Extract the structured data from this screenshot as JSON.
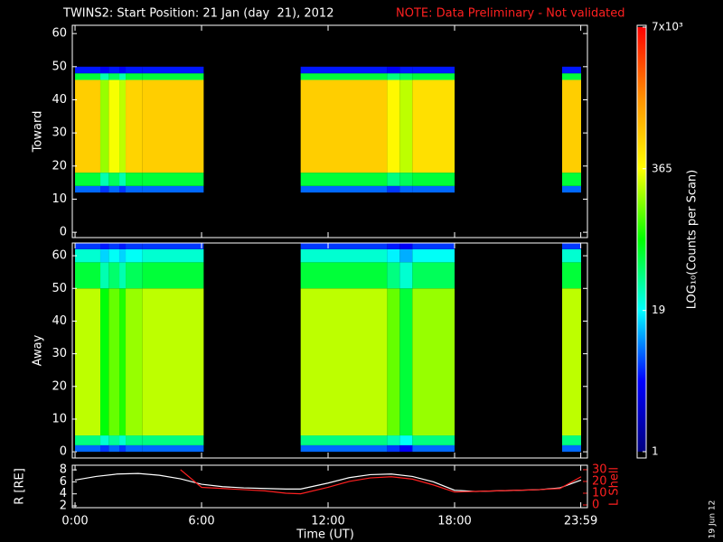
{
  "header": {
    "title": "TWINS2: Start Position: 21 Jan (day  21), 2012",
    "note": "NOTE: Data Preliminary - Not validated",
    "date_stamp": "19 Jun 12"
  },
  "colorbar": {
    "label": "LOG₁₀(Counts per Scan)",
    "scale": "log",
    "zlim": [
      1,
      7000
    ],
    "zticks": [
      1,
      19,
      365,
      {
        "value": 7000,
        "label": "7x10³"
      }
    ],
    "colormap": [
      "#000080",
      "#0000ff",
      "#00ffff",
      "#00ff00",
      "#ffff00",
      "#ff9000",
      "#ff0000"
    ]
  },
  "chart_data": [
    {
      "type": "heatmap",
      "ylabel": "Toward",
      "xlim": [
        -0.13,
        24.3
      ],
      "ylim": [
        -1.6,
        62.5
      ],
      "yticks": [
        0,
        10,
        20,
        30,
        40,
        50,
        60
      ],
      "x_bins": [
        0,
        1.2,
        1.6,
        2.1,
        2.4,
        3.2,
        6.1,
        10.7,
        14.8,
        15.4,
        16,
        18,
        23.1,
        24
      ],
      "y_bins": [
        0,
        12,
        14,
        18,
        46,
        48,
        50,
        64
      ],
      "values": [
        [
          null,
          null,
          null,
          null,
          null,
          null,
          null,
          null,
          null,
          null,
          null,
          null,
          null
        ],
        [
          8,
          6,
          8,
          6,
          8,
          8,
          null,
          8,
          6,
          8,
          8,
          null,
          8
        ],
        [
          60,
          30,
          50,
          30,
          60,
          60,
          null,
          60,
          40,
          50,
          60,
          null,
          60
        ],
        [
          700,
          200,
          350,
          250,
          650,
          700,
          null,
          700,
          400,
          250,
          550,
          null,
          700
        ],
        [
          60,
          30,
          50,
          30,
          60,
          60,
          null,
          60,
          40,
          50,
          60,
          null,
          60
        ],
        [
          5,
          4,
          5,
          4,
          5,
          5,
          null,
          5,
          4,
          5,
          5,
          null,
          5
        ],
        [
          null,
          null,
          null,
          null,
          null,
          null,
          null,
          null,
          null,
          null,
          null,
          null,
          null
        ]
      ]
    },
    {
      "type": "heatmap",
      "ylabel": "Away",
      "xlim": [
        -0.13,
        24.3
      ],
      "ylim": [
        -1.9,
        63.9
      ],
      "yticks": [
        0,
        10,
        20,
        30,
        40,
        50,
        60
      ],
      "x_bins": [
        0,
        1.2,
        1.6,
        2.1,
        2.4,
        3.2,
        6.1,
        10.7,
        14.8,
        15.4,
        16,
        18,
        23.1,
        24
      ],
      "y_bins": [
        0,
        2,
        5,
        50,
        58,
        62,
        64
      ],
      "values": [
        [
          8,
          6,
          8,
          6,
          8,
          8,
          null,
          8,
          6,
          4,
          8,
          null,
          8
        ],
        [
          40,
          25,
          35,
          25,
          40,
          40,
          null,
          40,
          30,
          20,
          40,
          null,
          40
        ],
        [
          250,
          80,
          150,
          100,
          200,
          250,
          null,
          250,
          150,
          60,
          200,
          null,
          250
        ],
        [
          60,
          30,
          45,
          30,
          50,
          60,
          null,
          60,
          40,
          25,
          50,
          null,
          60
        ],
        [
          25,
          15,
          20,
          15,
          20,
          25,
          null,
          25,
          18,
          12,
          20,
          null,
          25
        ],
        [
          6,
          5,
          6,
          5,
          6,
          6,
          null,
          6,
          5,
          4,
          6,
          null,
          6
        ]
      ]
    },
    {
      "type": "line",
      "xlabel": "Time (UT)",
      "ylabel": "R [RE]",
      "y2label": "L Shell",
      "xlim": [
        -0.13,
        24.3
      ],
      "ylim": [
        1.7,
        8.77
      ],
      "yticks": [
        2,
        4,
        6,
        8
      ],
      "y2lim": [
        -2.3,
        33.8
      ],
      "y2ticks": [
        0,
        10,
        20,
        30
      ],
      "xticks": [
        {
          "value": 0,
          "label": "0:00"
        },
        {
          "value": 6,
          "label": "6:00"
        },
        {
          "value": 12,
          "label": "12:00"
        },
        {
          "value": 18,
          "label": "18:00"
        },
        {
          "value": 23.983,
          "label": "23:59"
        }
      ],
      "x": [
        0,
        1,
        2,
        3,
        4,
        5,
        6,
        7,
        8,
        9,
        10,
        10.7,
        12,
        13,
        14,
        15,
        16,
        17,
        18,
        19,
        20,
        21,
        22,
        23,
        24
      ],
      "series": [
        {
          "name": "R",
          "color": "#ffffff",
          "values": [
            6.3,
            6.9,
            7.3,
            7.4,
            7.1,
            6.5,
            5.6,
            5.2,
            5.0,
            4.9,
            4.8,
            4.8,
            5.8,
            6.7,
            7.2,
            7.3,
            6.9,
            6.0,
            4.6,
            4.4,
            4.5,
            4.6,
            4.7,
            5.0,
            6.3
          ]
        },
        {
          "name": "L Shell",
          "color": "#ff2020",
          "axis": "y2",
          "values": [
            null,
            null,
            null,
            null,
            null,
            30,
            15,
            14,
            13,
            12,
            10,
            9.5,
            15,
            20,
            23,
            24,
            22,
            17,
            11,
            11.5,
            12,
            12.5,
            13,
            14,
            24
          ]
        }
      ]
    }
  ]
}
